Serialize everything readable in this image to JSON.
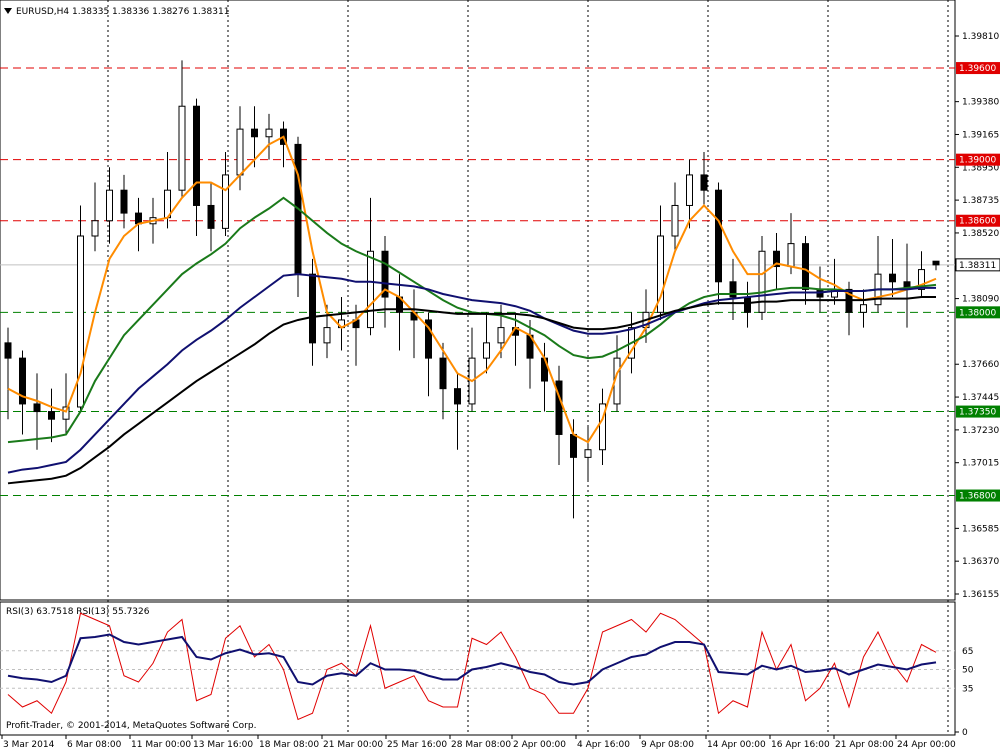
{
  "chart_data": {
    "type": "candlestick",
    "title": "EURUSD,H4  1.38335 1.38336 1.38276 1.38311",
    "ylim": [
      1.36155,
      1.3981
    ],
    "yticks": [
      {
        "value": 1.3981,
        "label": "1.39810"
      },
      {
        "value": 1.3938,
        "label": "1.39380"
      },
      {
        "value": 1.39165,
        "label": "1.39165"
      },
      {
        "value": 1.3895,
        "label": "1.38950"
      },
      {
        "value": 1.38735,
        "label": "1.38735"
      },
      {
        "value": 1.3852,
        "label": "1.38520"
      },
      {
        "value": 1.3809,
        "label": "1.38090"
      },
      {
        "value": 1.3766,
        "label": "1.37660"
      },
      {
        "value": 1.37445,
        "label": "1.37445"
      },
      {
        "value": 1.3723,
        "label": "1.37230"
      },
      {
        "value": 1.37015,
        "label": "1.37015"
      },
      {
        "value": 1.36585,
        "label": "1.36585"
      },
      {
        "value": 1.3637,
        "label": "1.36370"
      },
      {
        "value": 1.36155,
        "label": "1.36155"
      }
    ],
    "current": {
      "value": 1.38311,
      "label": "1.38311"
    },
    "levels": [
      {
        "value": 1.396,
        "label": "1.39600",
        "color": "#e00000"
      },
      {
        "value": 1.39,
        "label": "1.39000",
        "color": "#e00000"
      },
      {
        "value": 1.386,
        "label": "1.38600",
        "color": "#e00000"
      },
      {
        "value": 1.38,
        "label": "1.38000",
        "color": "#008000"
      },
      {
        "value": 1.3735,
        "label": "1.37350",
        "color": "#008000"
      },
      {
        "value": 1.368,
        "label": "1.36800",
        "color": "#008000"
      }
    ],
    "x_labels": [
      "3 Mar 2014",
      "6 Mar 08:00",
      "11 Mar 00:00",
      "13 Mar 16:00",
      "18 Mar 08:00",
      "21 Mar 00:00",
      "25 Mar 16:00",
      "28 Mar 08:00",
      "2 Apr 00:00",
      "4 Apr 16:00",
      "9 Apr 08:00",
      "14 Apr 00:00",
      "16 Apr 16:00",
      "21 Apr 08:00",
      "24 Apr 00:00"
    ],
    "candles": [
      [
        1.378,
        1.379,
        1.373,
        1.377
      ],
      [
        1.377,
        1.3775,
        1.372,
        1.374
      ],
      [
        1.374,
        1.376,
        1.371,
        1.3735
      ],
      [
        1.3735,
        1.375,
        1.3715,
        1.373
      ],
      [
        1.373,
        1.376,
        1.372,
        1.3738
      ],
      [
        1.3738,
        1.387,
        1.3735,
        1.385
      ],
      [
        1.385,
        1.3885,
        1.384,
        1.386
      ],
      [
        1.386,
        1.3895,
        1.3845,
        1.388
      ],
      [
        1.388,
        1.389,
        1.3855,
        1.3865
      ],
      [
        1.3865,
        1.3875,
        1.384,
        1.3858
      ],
      [
        1.3858,
        1.3875,
        1.3845,
        1.3862
      ],
      [
        1.3862,
        1.3905,
        1.3855,
        1.388
      ],
      [
        1.388,
        1.3965,
        1.3875,
        1.3935
      ],
      [
        1.3935,
        1.394,
        1.385,
        1.387
      ],
      [
        1.387,
        1.3885,
        1.384,
        1.3855
      ],
      [
        1.3855,
        1.3905,
        1.385,
        1.389
      ],
      [
        1.389,
        1.3935,
        1.388,
        1.392
      ],
      [
        1.392,
        1.3935,
        1.3895,
        1.3915
      ],
      [
        1.3915,
        1.393,
        1.39,
        1.392
      ],
      [
        1.392,
        1.3925,
        1.3895,
        1.391
      ],
      [
        1.391,
        1.3915,
        1.381,
        1.3825
      ],
      [
        1.3825,
        1.3835,
        1.3765,
        1.378
      ],
      [
        1.378,
        1.3805,
        1.377,
        1.379
      ],
      [
        1.379,
        1.381,
        1.3775,
        1.3795
      ],
      [
        1.3795,
        1.3805,
        1.3765,
        1.379
      ],
      [
        1.379,
        1.3875,
        1.3785,
        1.384
      ],
      [
        1.384,
        1.385,
        1.379,
        1.381
      ],
      [
        1.381,
        1.3825,
        1.3775,
        1.38
      ],
      [
        1.38,
        1.3815,
        1.377,
        1.3795
      ],
      [
        1.3795,
        1.38,
        1.3745,
        1.377
      ],
      [
        1.377,
        1.378,
        1.373,
        1.375
      ],
      [
        1.375,
        1.376,
        1.371,
        1.374
      ],
      [
        1.374,
        1.379,
        1.3735,
        1.377
      ],
      [
        1.377,
        1.38,
        1.376,
        1.378
      ],
      [
        1.378,
        1.3805,
        1.377,
        1.379
      ],
      [
        1.379,
        1.38,
        1.3765,
        1.3785
      ],
      [
        1.3785,
        1.3795,
        1.375,
        1.377
      ],
      [
        1.377,
        1.378,
        1.3735,
        1.3755
      ],
      [
        1.3755,
        1.3765,
        1.37,
        1.372
      ],
      [
        1.372,
        1.373,
        1.3665,
        1.3705
      ],
      [
        1.3705,
        1.3725,
        1.369,
        1.371
      ],
      [
        1.371,
        1.375,
        1.37,
        1.374
      ],
      [
        1.374,
        1.3785,
        1.3735,
        1.377
      ],
      [
        1.377,
        1.38,
        1.376,
        1.379
      ],
      [
        1.379,
        1.3815,
        1.378,
        1.38
      ],
      [
        1.38,
        1.387,
        1.3795,
        1.385
      ],
      [
        1.385,
        1.3885,
        1.384,
        1.387
      ],
      [
        1.387,
        1.39,
        1.3855,
        1.389
      ],
      [
        1.389,
        1.3905,
        1.387,
        1.388
      ],
      [
        1.388,
        1.3885,
        1.3805,
        1.382
      ],
      [
        1.382,
        1.3835,
        1.3795,
        1.381
      ],
      [
        1.381,
        1.382,
        1.379,
        1.38
      ],
      [
        1.38,
        1.385,
        1.3795,
        1.384
      ],
      [
        1.384,
        1.3852,
        1.3815,
        1.383
      ],
      [
        1.383,
        1.3865,
        1.3825,
        1.3845
      ],
      [
        1.3845,
        1.385,
        1.3805,
        1.3815
      ],
      [
        1.3815,
        1.383,
        1.38,
        1.381
      ],
      [
        1.381,
        1.3835,
        1.3805,
        1.3815
      ],
      [
        1.3815,
        1.382,
        1.3785,
        1.38
      ],
      [
        1.38,
        1.3815,
        1.379,
        1.3805
      ],
      [
        1.3805,
        1.385,
        1.38,
        1.3825
      ],
      [
        1.3825,
        1.3848,
        1.381,
        1.382
      ],
      [
        1.382,
        1.3845,
        1.379,
        1.3815
      ],
      [
        1.3815,
        1.384,
        1.381,
        1.3828
      ],
      [
        1.38335,
        1.38336,
        1.38276,
        1.38311
      ]
    ],
    "series": [
      {
        "color": "#ff8c00",
        "values": [
          1.375,
          1.3745,
          1.3742,
          1.3738,
          1.3735,
          1.376,
          1.38,
          1.3835,
          1.385,
          1.3858,
          1.386,
          1.3862,
          1.3875,
          1.3885,
          1.3885,
          1.388,
          1.389,
          1.39,
          1.391,
          1.3915,
          1.389,
          1.384,
          1.38,
          1.379,
          1.3795,
          1.3805,
          1.3815,
          1.381,
          1.38,
          1.379,
          1.3775,
          1.376,
          1.3755,
          1.3762,
          1.3775,
          1.379,
          1.3785,
          1.377,
          1.3745,
          1.372,
          1.3715,
          1.373,
          1.376,
          1.3775,
          1.379,
          1.381,
          1.384,
          1.386,
          1.387,
          1.386,
          1.384,
          1.3825,
          1.3825,
          1.3832,
          1.383,
          1.3828,
          1.3822,
          1.3818,
          1.3812,
          1.3808,
          1.381,
          1.3812,
          1.3815,
          1.3818,
          1.3822
        ]
      },
      {
        "color": "#1a7a1a",
        "values": [
          1.3715,
          1.3716,
          1.3717,
          1.3718,
          1.372,
          1.3735,
          1.3755,
          1.377,
          1.3785,
          1.3795,
          1.3805,
          1.3815,
          1.3825,
          1.3832,
          1.3838,
          1.3845,
          1.3855,
          1.3862,
          1.3868,
          1.3875,
          1.3868,
          1.386,
          1.3852,
          1.3845,
          1.384,
          1.3836,
          1.3832,
          1.3826,
          1.382,
          1.3814,
          1.3808,
          1.3803,
          1.38,
          1.3799,
          1.3798,
          1.3795,
          1.379,
          1.3785,
          1.3778,
          1.3772,
          1.377,
          1.3771,
          1.3775,
          1.378,
          1.3785,
          1.3792,
          1.38,
          1.3806,
          1.381,
          1.3812,
          1.3812,
          1.3812,
          1.3813,
          1.3815,
          1.3816,
          1.3816,
          1.3815,
          1.3815,
          1.3814,
          1.3814,
          1.3815,
          1.3815,
          1.3816,
          1.3817,
          1.3818
        ]
      },
      {
        "color": "#101070",
        "values": [
          1.3695,
          1.3697,
          1.3698,
          1.37,
          1.3702,
          1.371,
          1.372,
          1.373,
          1.374,
          1.375,
          1.3758,
          1.3766,
          1.3775,
          1.3782,
          1.3788,
          1.3795,
          1.3803,
          1.381,
          1.3817,
          1.3824,
          1.3825,
          1.3824,
          1.3823,
          1.3822,
          1.382,
          1.382,
          1.3819,
          1.3818,
          1.3817,
          1.3815,
          1.3812,
          1.381,
          1.3808,
          1.3807,
          1.3806,
          1.3804,
          1.3801,
          1.3796,
          1.3792,
          1.3788,
          1.3786,
          1.3786,
          1.3787,
          1.3789,
          1.3792,
          1.3796,
          1.38,
          1.3803,
          1.3806,
          1.3808,
          1.3809,
          1.381,
          1.3811,
          1.3812,
          1.3813,
          1.3813,
          1.3813,
          1.3814,
          1.3814,
          1.3814,
          1.3815,
          1.3815,
          1.3815,
          1.3816,
          1.3816
        ]
      },
      {
        "color": "#000000",
        "values": [
          1.3688,
          1.3689,
          1.369,
          1.3691,
          1.3693,
          1.3698,
          1.3705,
          1.3712,
          1.372,
          1.3727,
          1.3734,
          1.3741,
          1.3748,
          1.3755,
          1.3761,
          1.3767,
          1.3773,
          1.3779,
          1.3786,
          1.3792,
          1.3795,
          1.3797,
          1.3798,
          1.3799,
          1.38,
          1.3801,
          1.3802,
          1.3802,
          1.3802,
          1.3801,
          1.38,
          1.3799,
          1.3799,
          1.3799,
          1.3799,
          1.3799,
          1.3798,
          1.3796,
          1.3793,
          1.379,
          1.3789,
          1.3789,
          1.379,
          1.3792,
          1.3795,
          1.3798,
          1.3801,
          1.3803,
          1.3805,
          1.3806,
          1.3806,
          1.3806,
          1.3807,
          1.3807,
          1.3808,
          1.3808,
          1.3808,
          1.3808,
          1.3808,
          1.3808,
          1.3809,
          1.3809,
          1.3809,
          1.381,
          1.381
        ]
      }
    ],
    "rsi": {
      "title": "RSI(3) 63.7518  RSI(13) 55.7326",
      "ylim": [
        0,
        100
      ],
      "yticks": [
        65,
        50,
        35,
        0
      ],
      "series": [
        {
          "color": "#e00000",
          "values": [
            30,
            20,
            25,
            15,
            40,
            95,
            90,
            85,
            45,
            40,
            55,
            80,
            90,
            25,
            30,
            75,
            85,
            60,
            70,
            50,
            10,
            15,
            50,
            55,
            45,
            85,
            35,
            40,
            45,
            25,
            20,
            20,
            75,
            70,
            80,
            60,
            35,
            30,
            15,
            15,
            35,
            80,
            85,
            90,
            80,
            95,
            90,
            80,
            70,
            15,
            25,
            20,
            80,
            50,
            70,
            25,
            35,
            55,
            20,
            60,
            80,
            55,
            40,
            70,
            63.75
          ]
        },
        {
          "color": "#101070",
          "values": [
            45,
            43,
            42,
            40,
            45,
            75,
            76,
            78,
            72,
            70,
            72,
            74,
            76,
            60,
            58,
            63,
            66,
            62,
            63,
            60,
            40,
            38,
            45,
            47,
            45,
            55,
            50,
            50,
            49,
            45,
            42,
            42,
            50,
            52,
            55,
            52,
            48,
            46,
            40,
            38,
            40,
            50,
            55,
            60,
            62,
            68,
            72,
            72,
            70,
            48,
            47,
            46,
            53,
            50,
            53,
            48,
            49,
            51,
            46,
            50,
            54,
            52,
            50,
            54,
            55.73
          ]
        }
      ]
    },
    "footer": "Profit-Trader, © 2001-2014, MetaQuotes Software Corp."
  }
}
